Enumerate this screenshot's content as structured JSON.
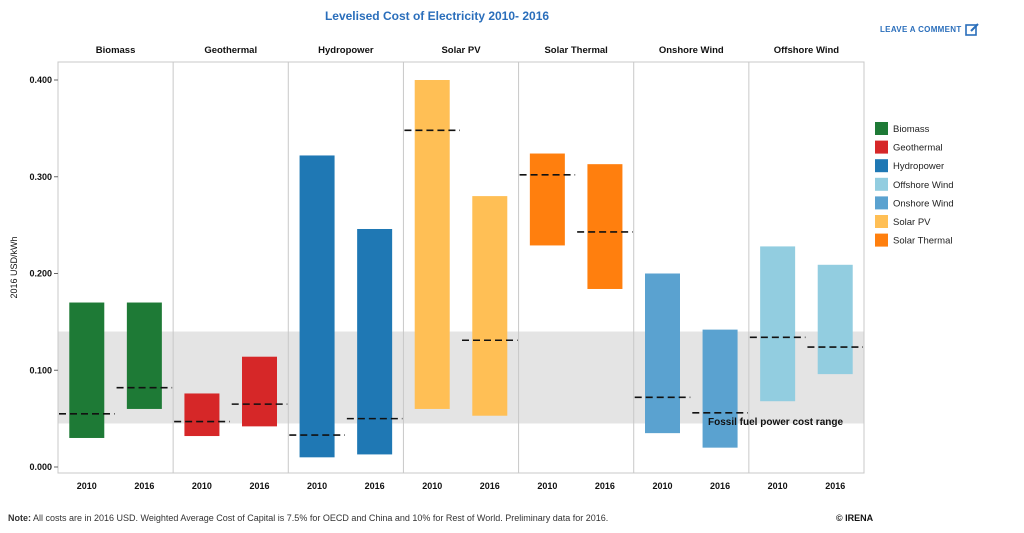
{
  "header": {
    "comment_label": "LEAVE A COMMENT"
  },
  "footer": {
    "note_prefix": "Note:",
    "note_text": " All costs are in 2016 USD. Weighted Average Cost of Capital is 7.5% for OECD and China and 10% for Rest of World. Preliminary data for 2016.",
    "copyright": "© IRENA"
  },
  "chart_data": {
    "type": "bar",
    "subtype": "floating-range-with-weighted-average",
    "title": "Levelised Cost of Electricity 2010- 2016",
    "ylabel": "2016 USD/kWh",
    "ylim": [
      0,
      0.41
    ],
    "yticks": [
      "0.000",
      "0.100",
      "0.200",
      "0.300",
      "0.400"
    ],
    "ytick_values": [
      0,
      0.1,
      0.2,
      0.3,
      0.4
    ],
    "x_categories": [
      "2010",
      "2016"
    ],
    "grid": false,
    "legend_position": "right",
    "panels": [
      {
        "name": "Biomass",
        "color": "#1e7a36",
        "bars": [
          {
            "year": "2010",
            "low": 0.03,
            "high": 0.17,
            "average": 0.055
          },
          {
            "year": "2016",
            "low": 0.06,
            "high": 0.17,
            "average": 0.082
          }
        ]
      },
      {
        "name": "Geothermal",
        "color": "#d62728",
        "bars": [
          {
            "year": "2010",
            "low": 0.032,
            "high": 0.076,
            "average": 0.047
          },
          {
            "year": "2016",
            "low": 0.042,
            "high": 0.114,
            "average": 0.065
          }
        ]
      },
      {
        "name": "Hydropower",
        "color": "#1f78b4",
        "bars": [
          {
            "year": "2010",
            "low": 0.01,
            "high": 0.322,
            "average": 0.033
          },
          {
            "year": "2016",
            "low": 0.013,
            "high": 0.246,
            "average": 0.05
          }
        ]
      },
      {
        "name": "Solar PV",
        "color": "#ffbf55",
        "bars": [
          {
            "year": "2010",
            "low": 0.06,
            "high": 0.4,
            "average": 0.348
          },
          {
            "year": "2016",
            "low": 0.053,
            "high": 0.28,
            "average": 0.131
          }
        ]
      },
      {
        "name": "Solar Thermal",
        "color": "#ff7f0e",
        "bars": [
          {
            "year": "2010",
            "low": 0.229,
            "high": 0.324,
            "average": 0.302
          },
          {
            "year": "2016",
            "low": 0.184,
            "high": 0.313,
            "average": 0.243
          }
        ]
      },
      {
        "name": "Onshore Wind",
        "color": "#5aa2d0",
        "bars": [
          {
            "year": "2010",
            "low": 0.035,
            "high": 0.2,
            "average": 0.072
          },
          {
            "year": "2016",
            "low": 0.02,
            "high": 0.142,
            "average": 0.056
          }
        ]
      },
      {
        "name": "Offshore Wind",
        "color": "#92cde0",
        "bars": [
          {
            "year": "2010",
            "low": 0.068,
            "high": 0.228,
            "average": 0.134
          },
          {
            "year": "2016",
            "low": 0.096,
            "high": 0.209,
            "average": 0.124
          }
        ]
      }
    ],
    "band": {
      "label": "Fossil fuel power cost range",
      "low": 0.045,
      "high": 0.14,
      "color": "#e4e4e4"
    },
    "legend": [
      {
        "label": "Biomass",
        "color": "#1e7a36"
      },
      {
        "label": "Geothermal",
        "color": "#d62728"
      },
      {
        "label": "Hydropower",
        "color": "#1f78b4"
      },
      {
        "label": "Offshore Wind",
        "color": "#92cde0"
      },
      {
        "label": "Onshore Wind",
        "color": "#5aa2d0"
      },
      {
        "label": "Solar PV",
        "color": "#ffbf55"
      },
      {
        "label": "Solar Thermal",
        "color": "#ff7f0e"
      }
    ]
  }
}
